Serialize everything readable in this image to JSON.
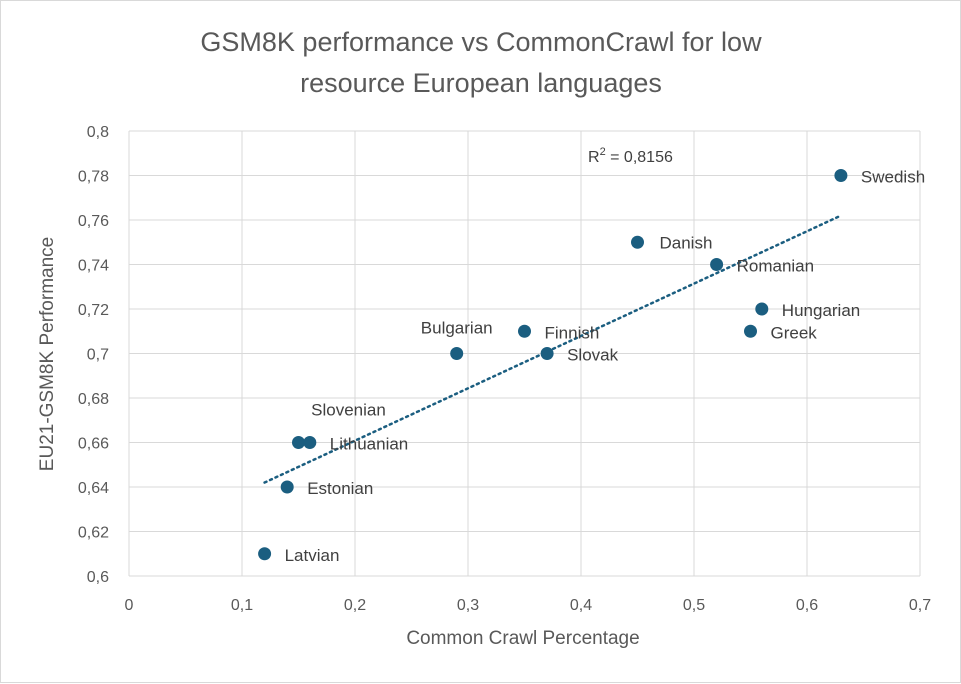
{
  "chart_data": {
    "type": "scatter",
    "title_lines": [
      "GSM8K performance vs CommonCrawl for low",
      "resource European languages"
    ],
    "xlabel": "Common Crawl Percentage",
    "ylabel": "EU21-GSM8K Performance",
    "xlim": [
      0,
      0.7
    ],
    "ylim": [
      0.6,
      0.8
    ],
    "x_ticks": [
      0,
      0.1,
      0.2,
      0.3,
      0.4,
      0.5,
      0.6,
      0.7
    ],
    "x_tick_labels": [
      "0",
      "0,1",
      "0,2",
      "0,3",
      "0,4",
      "0,5",
      "0,6",
      "0,7"
    ],
    "y_ticks": [
      0.6,
      0.62,
      0.64,
      0.66,
      0.68,
      0.7,
      0.72,
      0.74,
      0.76,
      0.78,
      0.8
    ],
    "y_tick_labels": [
      "0,6",
      "0,62",
      "0,64",
      "0,66",
      "0,68",
      "0,7",
      "0,72",
      "0,74",
      "0,76",
      "0,78",
      "0,8"
    ],
    "grid": true,
    "marker_color": "#1b5e80",
    "trend_color": "#1b5e80",
    "points": [
      {
        "label": "Swedish",
        "x": 0.63,
        "y": 0.78
      },
      {
        "label": "Danish",
        "x": 0.45,
        "y": 0.75
      },
      {
        "label": "Romanian",
        "x": 0.52,
        "y": 0.74
      },
      {
        "label": "Hungarian",
        "x": 0.56,
        "y": 0.72
      },
      {
        "label": "Greek",
        "x": 0.55,
        "y": 0.71
      },
      {
        "label": "Finnish",
        "x": 0.35,
        "y": 0.71
      },
      {
        "label": "Bulgarian",
        "x": 0.29,
        "y": 0.7
      },
      {
        "label": "Slovak",
        "x": 0.37,
        "y": 0.7
      },
      {
        "label": "Slovenian",
        "x": 0.15,
        "y": 0.66
      },
      {
        "label": "Lithuanian",
        "x": 0.16,
        "y": 0.66
      },
      {
        "label": "Estonian",
        "x": 0.14,
        "y": 0.64
      },
      {
        "label": "Latvian",
        "x": 0.12,
        "y": 0.61
      }
    ],
    "trendline": {
      "type": "linear",
      "x": [
        0.12,
        0.63
      ],
      "y": [
        0.642,
        0.762
      ],
      "r2_label": "R",
      "r2_sup": "2",
      "r2_value": " = 0,8156"
    }
  }
}
